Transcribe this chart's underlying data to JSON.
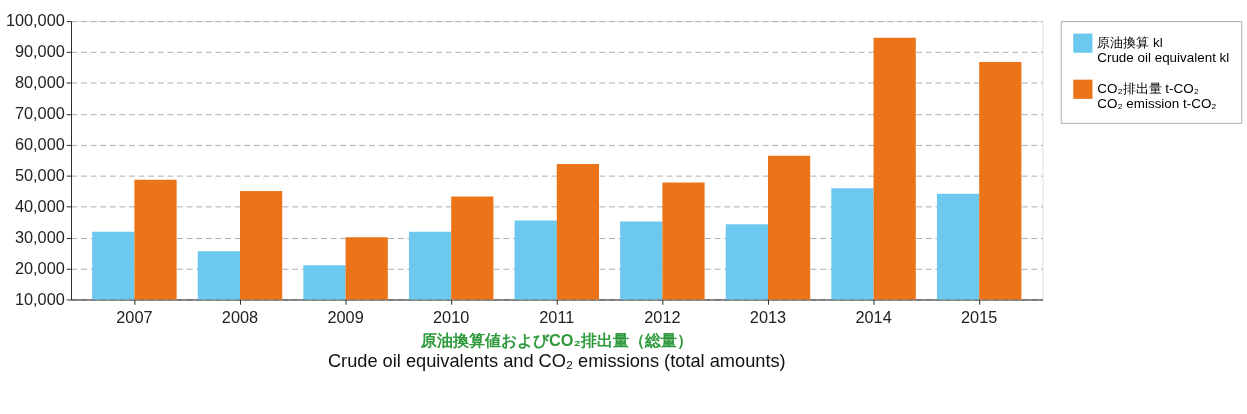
{
  "chart_data": {
    "type": "bar",
    "title": "原油換算値およびCO₂排出量（総量）",
    "subtitle": "Crude oil equivalents and CO₂ emissions (total amounts)",
    "categories": [
      "2007",
      "2008",
      "2009",
      "2010",
      "2011",
      "2012",
      "2013",
      "2014",
      "2015"
    ],
    "series": [
      {
        "name": "原油換算 kl\nCrude oil equivalent kl",
        "color": "#6cc8ee",
        "values": [
          31900,
          25600,
          21100,
          31900,
          35500,
          35200,
          34300,
          46000,
          44200
        ]
      },
      {
        "name": "CO₂排出量 t-CO₂\nCO₂ emission t-CO₂",
        "color": "#ec7418",
        "values": [
          48700,
          45100,
          30100,
          43300,
          53800,
          47800,
          56500,
          94600,
          86800
        ]
      }
    ],
    "ylim": [
      10000,
      100000
    ],
    "yticks": [
      {
        "value": 10000,
        "label": "10,000"
      },
      {
        "value": 20000,
        "label": "20,000"
      },
      {
        "value": 30000,
        "label": "30,000"
      },
      {
        "value": 40000,
        "label": "40,000"
      },
      {
        "value": 50000,
        "label": "50,000"
      },
      {
        "value": 60000,
        "label": "60,000"
      },
      {
        "value": 70000,
        "label": "70,000"
      },
      {
        "value": 80000,
        "label": "80,000"
      },
      {
        "value": 90000,
        "label": "90,000"
      },
      {
        "value": 100000,
        "label": "100,000"
      }
    ],
    "grid": "y",
    "legend": "right"
  }
}
